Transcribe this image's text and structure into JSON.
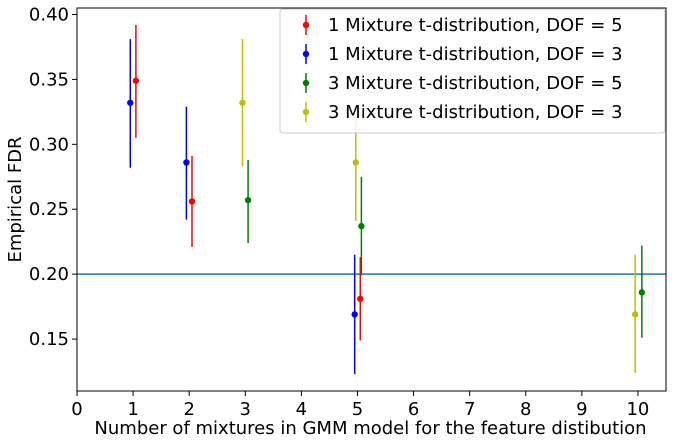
{
  "chart_data": {
    "type": "scatter",
    "title": "",
    "xlabel": "Number of mixtures in GMM model for the feature distibution",
    "ylabel": "Empirical FDR",
    "xlim": [
      0,
      10.5
    ],
    "ylim": [
      0.11,
      0.405
    ],
    "xticks": [
      0,
      1,
      2,
      3,
      4,
      5,
      6,
      7,
      8,
      9,
      10
    ],
    "xtick_labels": [
      "0",
      "1",
      "2",
      "3",
      "4",
      "5",
      "6",
      "7",
      "8",
      "9",
      "10"
    ],
    "yticks": [
      0.15,
      0.2,
      0.25,
      0.3,
      0.35,
      0.4
    ],
    "ytick_labels": [
      "0.15",
      "0.20",
      "0.25",
      "0.30",
      "0.35",
      "0.40"
    ],
    "grid": false,
    "legend_position": "top-right",
    "reference_line": {
      "y": 0.2,
      "color": "#1f77b4"
    },
    "series": [
      {
        "name": "1 Mixture t-distribution, DOF = 5",
        "color": "#ff0000",
        "x": [
          1.05,
          2.05,
          5.05
        ],
        "y": [
          0.349,
          0.256,
          0.181
        ],
        "err_low": [
          0.305,
          0.221,
          0.149
        ],
        "err_high": [
          0.392,
          0.291,
          0.213
        ]
      },
      {
        "name": "1 Mixture t-distribution, DOF = 3",
        "color": "#0000ff",
        "x": [
          0.95,
          1.95,
          4.95
        ],
        "y": [
          0.332,
          0.286,
          0.169
        ],
        "err_low": [
          0.282,
          0.242,
          0.123
        ],
        "err_high": [
          0.381,
          0.329,
          0.215
        ]
      },
      {
        "name": "3 Mixture t-distribution, DOF = 5",
        "color": "#008000",
        "x": [
          3.05,
          5.07,
          10.07
        ],
        "y": [
          0.257,
          0.237,
          0.186
        ],
        "err_low": [
          0.224,
          0.199,
          0.151
        ],
        "err_high": [
          0.288,
          0.275,
          0.222
        ]
      },
      {
        "name": "3 Mixture t-distribution, DOF = 3",
        "color": "#bfbf00",
        "x": [
          2.95,
          4.97,
          9.95
        ],
        "y": [
          0.332,
          0.286,
          0.169
        ],
        "err_low": [
          0.283,
          0.241,
          0.124
        ],
        "err_high": [
          0.381,
          0.33,
          0.215
        ]
      }
    ]
  }
}
